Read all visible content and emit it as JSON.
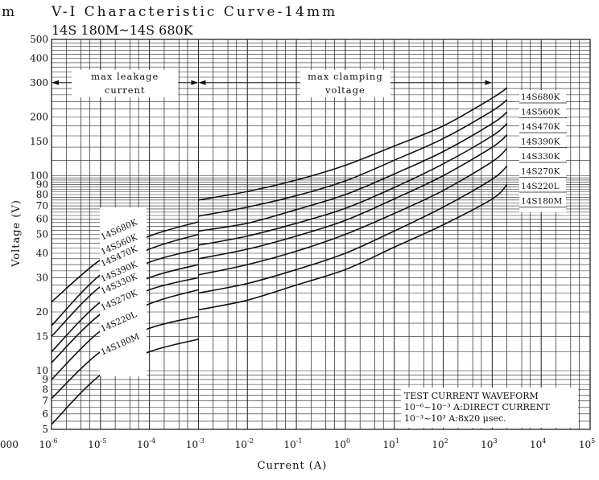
{
  "chart_data": {
    "type": "line",
    "title": "V-I Characteristic Curve-14mm",
    "subtitle": "14S 180M~14S 680K",
    "left_edge_fragment": "m",
    "bottom_left_fragment": "000",
    "xlabel": "Current (A)",
    "ylabel": "Voltage (V)",
    "x_scale": "log",
    "y_scale": "log",
    "xlim": [
      1e-06,
      100000.0
    ],
    "ylim": [
      5,
      500
    ],
    "grid": true,
    "x_ticks": [
      {
        "value": 1e-06,
        "base": "10",
        "exp": "-6"
      },
      {
        "value": 1e-05,
        "base": "10",
        "exp": "-5"
      },
      {
        "value": 0.0001,
        "base": "10",
        "exp": "-4"
      },
      {
        "value": 0.001,
        "base": "10",
        "exp": "-3"
      },
      {
        "value": 0.01,
        "base": "10",
        "exp": "-2"
      },
      {
        "value": 0.1,
        "base": "10",
        "exp": "-1"
      },
      {
        "value": 1,
        "base": "10",
        "exp": "0"
      },
      {
        "value": 10,
        "base": "10",
        "exp": "1"
      },
      {
        "value": 100,
        "base": "10",
        "exp": "2"
      },
      {
        "value": 1000,
        "base": "10",
        "exp": "3"
      },
      {
        "value": 10000,
        "base": "10",
        "exp": "4"
      },
      {
        "value": 100000,
        "base": "10",
        "exp": "5"
      }
    ],
    "y_ticks": [
      {
        "value": 500,
        "label": "500"
      },
      {
        "value": 400,
        "label": "400"
      },
      {
        "value": 300,
        "label": "300"
      },
      {
        "value": 200,
        "label": "200"
      },
      {
        "value": 150,
        "label": "150"
      },
      {
        "value": 100,
        "label": "100"
      },
      {
        "value": 90,
        "label": "90"
      },
      {
        "value": 80,
        "label": "80"
      },
      {
        "value": 70,
        "label": "70"
      },
      {
        "value": 60,
        "label": "60"
      },
      {
        "value": 50,
        "label": "50"
      },
      {
        "value": 40,
        "label": "40"
      },
      {
        "value": 30,
        "label": "30"
      },
      {
        "value": 20,
        "label": "20"
      },
      {
        "value": 15,
        "label": "15"
      },
      {
        "value": 10,
        "label": "10"
      },
      {
        "value": 9,
        "label": "9"
      },
      {
        "value": 8,
        "label": "8"
      },
      {
        "value": 7,
        "label": "7"
      },
      {
        "value": 6,
        "label": "6"
      },
      {
        "value": 5,
        "label": "5"
      }
    ],
    "annotations": {
      "max_leakage": {
        "line1": "max leakage",
        "line2": "current",
        "x_range": [
          1e-06,
          0.001
        ],
        "y": 300
      },
      "max_clamping": {
        "line1": "max clamping",
        "line2": "voltage",
        "x_range": [
          0.001,
          1000
        ],
        "y": 300
      },
      "test_note": {
        "line1": "TEST CURRENT WAVEFORM",
        "line2": "10⁻⁶~10⁻³ A:DIRECT CURRENT",
        "line3": "10⁻³~10³ A:8x20 μsec."
      }
    },
    "series": [
      {
        "name": "14S680K",
        "leakage": {
          "x": [
            1e-06,
            1e-05,
            0.0001,
            0.001
          ],
          "y": [
            22.5,
            37,
            49,
            58
          ]
        },
        "clamping": {
          "x": [
            0.001,
            0.01,
            0.1,
            1,
            10,
            100,
            1000,
            2000
          ],
          "y": [
            75,
            83,
            95,
            113,
            142,
            180,
            250,
            282
          ]
        }
      },
      {
        "name": "14S560K",
        "leakage": {
          "x": [
            1e-06,
            1e-05,
            0.0001,
            0.001
          ],
          "y": [
            17,
            31,
            42,
            50
          ]
        },
        "clamping": {
          "x": [
            0.001,
            0.01,
            0.1,
            1,
            10,
            100,
            1000,
            2000
          ],
          "y": [
            62,
            69,
            79,
            94,
            120,
            155,
            215,
            245
          ]
        }
      },
      {
        "name": "14S470K",
        "leakage": {
          "x": [
            1e-06,
            1e-05,
            0.0001,
            0.001
          ],
          "y": [
            15,
            27,
            36,
            42
          ]
        },
        "clamping": {
          "x": [
            0.001,
            0.01,
            0.1,
            1,
            10,
            100,
            1000,
            2000
          ],
          "y": [
            52,
            57,
            67,
            80,
            102,
            133,
            185,
            212
          ]
        }
      },
      {
        "name": "14S390K",
        "leakage": {
          "x": [
            1e-06,
            1e-05,
            0.0001,
            0.001
          ],
          "y": [
            12.5,
            22.5,
            30,
            35
          ]
        },
        "clamping": {
          "x": [
            0.001,
            0.01,
            0.1,
            1,
            10,
            100,
            1000,
            2000
          ],
          "y": [
            44,
            49,
            57,
            68,
            87,
            115,
            160,
            185
          ]
        }
      },
      {
        "name": "14S330K",
        "leakage": {
          "x": [
            1e-06,
            1e-05,
            0.0001,
            0.001
          ],
          "y": [
            11,
            19.5,
            26,
            30
          ]
        },
        "clamping": {
          "x": [
            0.001,
            0.01,
            0.1,
            1,
            10,
            100,
            1000,
            2000
          ],
          "y": [
            37.5,
            42,
            49,
            59,
            76,
            100,
            140,
            162
          ]
        }
      },
      {
        "name": "14S270K",
        "leakage": {
          "x": [
            1e-06,
            1e-05,
            0.0001,
            0.001
          ],
          "y": [
            9,
            16,
            22,
            26
          ]
        },
        "clamping": {
          "x": [
            0.001,
            0.01,
            0.1,
            1,
            10,
            100,
            1000,
            2000
          ],
          "y": [
            31,
            35,
            41,
            50,
            64,
            84,
            118,
            138
          ]
        }
      },
      {
        "name": "14S220L",
        "leakage": {
          "x": [
            1e-06,
            1e-05,
            0.0001,
            0.001
          ],
          "y": [
            7.2,
            12.5,
            16.5,
            19
          ]
        },
        "clamping": {
          "x": [
            0.001,
            0.01,
            0.1,
            1,
            10,
            100,
            1000,
            2000
          ],
          "y": [
            25,
            28,
            33,
            40,
            52,
            69,
            96,
            112
          ]
        }
      },
      {
        "name": "14S180M",
        "leakage": {
          "x": [
            1e-06,
            1e-05,
            0.0001,
            0.001
          ],
          "y": [
            5.3,
            9.5,
            12.5,
            14.5
          ]
        },
        "clamping": {
          "x": [
            0.001,
            0.01,
            0.1,
            1,
            10,
            100,
            1000,
            2000
          ],
          "y": [
            20.5,
            23,
            27.5,
            33,
            43,
            56,
            76,
            90
          ]
        }
      }
    ]
  }
}
